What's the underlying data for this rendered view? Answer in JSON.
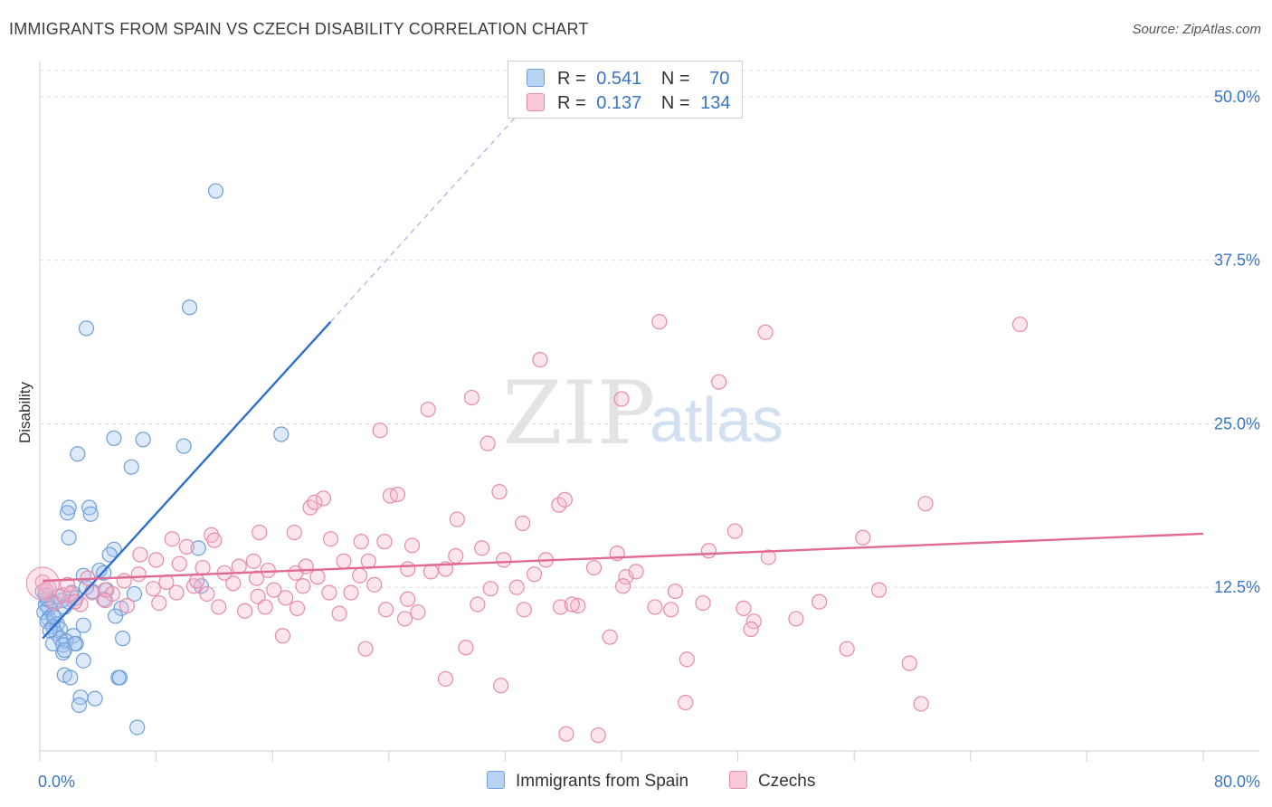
{
  "header": {
    "title": "IMMIGRANTS FROM SPAIN VS CZECH DISABILITY CORRELATION CHART",
    "source": "Source: ZipAtlas.com"
  },
  "watermark": {
    "zip": "ZIP",
    "atlas": "atlas"
  },
  "stats_legend": {
    "rows": [
      {
        "r_label": "R =",
        "r_value": "0.541",
        "n_label": "N =",
        "n_value": "70",
        "color": "#a9c8f0",
        "border": "#6f9fd8"
      },
      {
        "r_label": "R =",
        "r_value": "0.137",
        "n_label": "N =",
        "n_value": "134",
        "color": "#f7bdd0",
        "border": "#e98aa8"
      }
    ]
  },
  "bottom_legend": {
    "items": [
      {
        "label": "Immigrants from Spain",
        "color": "#b9d3f3",
        "border": "#6f9fd8"
      },
      {
        "label": "Czechs",
        "color": "#f9c9d8",
        "border": "#e98aa8"
      }
    ]
  },
  "chart_data": {
    "type": "scatter",
    "title": "IMMIGRANTS FROM SPAIN VS CZECH DISABILITY CORRELATION CHART",
    "xlabel": "",
    "ylabel": "Disability",
    "xlim": [
      0,
      80
    ],
    "ylim": [
      0,
      52
    ],
    "x_ticks": [
      "0.0%",
      "80.0%"
    ],
    "y_ticks": [
      {
        "value": 12.5,
        "label": "12.5%"
      },
      {
        "value": 25.0,
        "label": "25.0%"
      },
      {
        "value": 37.5,
        "label": "37.5%"
      },
      {
        "value": 50.0,
        "label": "50.0%"
      }
    ],
    "grid": true,
    "legend_position": "top-center",
    "series": [
      {
        "name": "Immigrants from Spain",
        "color": "#6f9fd8",
        "fill": "rgba(160,196,240,0.35)",
        "trend": {
          "x0": 0.2,
          "y0": 8.6,
          "x1": 20.0,
          "y1": 32.8,
          "dash_to_x": 33.0,
          "dash_to_y": 48.8,
          "color": "#2d6fd0"
        },
        "points": [
          [
            12.1,
            42.8
          ],
          [
            10.3,
            33.9
          ],
          [
            3.2,
            32.3
          ],
          [
            16.6,
            24.2
          ],
          [
            5.1,
            23.9
          ],
          [
            7.1,
            23.8
          ],
          [
            9.9,
            23.3
          ],
          [
            2.6,
            22.7
          ],
          [
            6.3,
            21.7
          ],
          [
            2.0,
            18.6
          ],
          [
            3.4,
            18.6
          ],
          [
            1.9,
            18.2
          ],
          [
            3.5,
            18.1
          ],
          [
            2.0,
            16.3
          ],
          [
            10.9,
            15.5
          ],
          [
            5.1,
            15.4
          ],
          [
            4.8,
            15.0
          ],
          [
            4.1,
            13.8
          ],
          [
            3.0,
            13.4
          ],
          [
            4.4,
            13.6
          ],
          [
            2.2,
            12.1
          ],
          [
            3.6,
            12.2
          ],
          [
            6.5,
            12.0
          ],
          [
            11.1,
            12.6
          ],
          [
            1.5,
            11.5
          ],
          [
            2.0,
            11.4
          ],
          [
            0.8,
            11.4
          ],
          [
            0.4,
            11.2
          ],
          [
            4.4,
            11.6
          ],
          [
            1.7,
            11.0
          ],
          [
            0.6,
            10.9
          ],
          [
            5.6,
            10.9
          ],
          [
            0.3,
            10.6
          ],
          [
            0.9,
            10.4
          ],
          [
            0.6,
            10.1
          ],
          [
            5.2,
            10.3
          ],
          [
            0.5,
            9.9
          ],
          [
            1.2,
            9.7
          ],
          [
            3.0,
            9.6
          ],
          [
            0.9,
            9.5
          ],
          [
            1.4,
            9.3
          ],
          [
            1.1,
            9.0
          ],
          [
            2.3,
            8.8
          ],
          [
            1.4,
            8.6
          ],
          [
            0.9,
            8.2
          ],
          [
            1.8,
            8.4
          ],
          [
            1.6,
            8.1
          ],
          [
            2.5,
            8.2
          ],
          [
            5.7,
            8.6
          ],
          [
            2.4,
            8.2
          ],
          [
            1.6,
            7.5
          ],
          [
            1.7,
            7.7
          ],
          [
            3.0,
            6.9
          ],
          [
            1.7,
            5.8
          ],
          [
            2.1,
            5.6
          ],
          [
            5.4,
            5.6
          ],
          [
            5.5,
            5.6
          ],
          [
            2.8,
            4.1
          ],
          [
            3.8,
            4.0
          ],
          [
            2.7,
            3.5
          ],
          [
            6.7,
            1.8
          ],
          [
            0.2,
            12.2
          ],
          [
            1.3,
            11.8
          ],
          [
            2.5,
            11.7
          ],
          [
            0.5,
            11.6
          ],
          [
            1.0,
            10.2
          ],
          [
            0.7,
            9.2
          ],
          [
            4.6,
            12.3
          ],
          [
            3.2,
            12.5
          ],
          [
            0.4,
            11.9
          ]
        ]
      },
      {
        "name": "Czechs",
        "color": "#e98aa8",
        "fill": "rgba(247,180,202,0.35)",
        "trend": {
          "x0": 0.2,
          "y0": 13.0,
          "x1": 80.0,
          "y1": 16.6,
          "color": "#e06a94"
        },
        "points": [
          [
            42.6,
            32.8
          ],
          [
            49.9,
            32.0
          ],
          [
            67.4,
            32.6
          ],
          [
            34.4,
            29.9
          ],
          [
            46.7,
            28.2
          ],
          [
            26.7,
            26.1
          ],
          [
            29.7,
            27.0
          ],
          [
            40.0,
            26.9
          ],
          [
            23.4,
            24.5
          ],
          [
            30.8,
            23.5
          ],
          [
            18.6,
            18.6
          ],
          [
            18.9,
            19.0
          ],
          [
            19.5,
            19.3
          ],
          [
            24.1,
            19.5
          ],
          [
            24.6,
            19.6
          ],
          [
            31.6,
            19.8
          ],
          [
            35.7,
            18.8
          ],
          [
            36.1,
            19.2
          ],
          [
            60.9,
            18.9
          ],
          [
            28.7,
            17.7
          ],
          [
            33.2,
            17.4
          ],
          [
            17.5,
            16.7
          ],
          [
            15.1,
            16.7
          ],
          [
            11.8,
            16.5
          ],
          [
            9.1,
            16.2
          ],
          [
            20.0,
            16.2
          ],
          [
            22.1,
            16.0
          ],
          [
            23.7,
            16.0
          ],
          [
            25.6,
            15.7
          ],
          [
            47.8,
            16.8
          ],
          [
            56.6,
            16.3
          ],
          [
            12.0,
            16.1
          ],
          [
            6.9,
            15.0
          ],
          [
            8.0,
            14.6
          ],
          [
            10.1,
            15.6
          ],
          [
            14.7,
            14.5
          ],
          [
            18.3,
            14.1
          ],
          [
            22.6,
            14.5
          ],
          [
            28.6,
            14.9
          ],
          [
            30.4,
            15.5
          ],
          [
            34.8,
            14.6
          ],
          [
            46.0,
            15.3
          ],
          [
            9.6,
            14.3
          ],
          [
            11.2,
            14.0
          ],
          [
            12.7,
            13.6
          ],
          [
            15.7,
            13.8
          ],
          [
            17.6,
            13.6
          ],
          [
            19.1,
            13.3
          ],
          [
            22.0,
            13.4
          ],
          [
            25.3,
            13.9
          ],
          [
            26.9,
            13.7
          ],
          [
            34.0,
            13.5
          ],
          [
            40.3,
            13.3
          ],
          [
            41.0,
            13.7
          ],
          [
            3.3,
            13.2
          ],
          [
            5.8,
            13.0
          ],
          [
            8.7,
            12.9
          ],
          [
            10.6,
            12.6
          ],
          [
            13.3,
            12.8
          ],
          [
            16.1,
            12.3
          ],
          [
            18.1,
            12.6
          ],
          [
            21.4,
            12.1
          ],
          [
            23.0,
            12.7
          ],
          [
            31.0,
            12.4
          ],
          [
            40.1,
            12.6
          ],
          [
            57.7,
            12.3
          ],
          [
            2.1,
            12.0
          ],
          [
            3.6,
            12.1
          ],
          [
            4.5,
            12.3
          ],
          [
            5.0,
            12.0
          ],
          [
            7.8,
            12.4
          ],
          [
            9.4,
            12.1
          ],
          [
            11.5,
            12.0
          ],
          [
            15.0,
            11.8
          ],
          [
            16.9,
            11.7
          ],
          [
            19.9,
            12.1
          ],
          [
            25.3,
            11.6
          ],
          [
            1.0,
            11.3
          ],
          [
            2.8,
            11.2
          ],
          [
            4.5,
            11.5
          ],
          [
            12.3,
            11.0
          ],
          [
            14.1,
            10.7
          ],
          [
            15.5,
            11.0
          ],
          [
            23.8,
            10.8
          ],
          [
            26.0,
            10.6
          ],
          [
            30.1,
            11.2
          ],
          [
            33.3,
            10.8
          ],
          [
            37.0,
            11.1
          ],
          [
            42.3,
            11.0
          ],
          [
            43.4,
            10.8
          ],
          [
            45.6,
            11.3
          ],
          [
            48.4,
            10.9
          ],
          [
            20.6,
            10.5
          ],
          [
            25.1,
            10.1
          ],
          [
            52.0,
            10.1
          ],
          [
            35.8,
            11.0
          ],
          [
            36.6,
            11.2
          ],
          [
            49.1,
            9.9
          ],
          [
            48.9,
            9.3
          ],
          [
            16.7,
            8.8
          ],
          [
            22.4,
            7.8
          ],
          [
            29.3,
            7.9
          ],
          [
            39.2,
            8.7
          ],
          [
            55.5,
            7.8
          ],
          [
            44.5,
            7.0
          ],
          [
            59.8,
            6.7
          ],
          [
            27.9,
            5.5
          ],
          [
            31.7,
            5.0
          ],
          [
            44.4,
            3.7
          ],
          [
            60.6,
            3.6
          ],
          [
            36.2,
            1.3
          ],
          [
            38.4,
            1.2
          ],
          [
            0.2,
            12.9
          ],
          [
            0.6,
            12.5
          ],
          [
            1.6,
            11.9
          ],
          [
            2.4,
            11.4
          ],
          [
            6.8,
            13.5
          ],
          [
            13.7,
            14.1
          ],
          [
            20.9,
            14.5
          ],
          [
            27.9,
            13.9
          ],
          [
            32.8,
            12.5
          ],
          [
            38.1,
            14.0
          ],
          [
            43.7,
            12.2
          ],
          [
            50.1,
            14.8
          ],
          [
            53.6,
            11.4
          ],
          [
            10.8,
            13.0
          ],
          [
            14.9,
            13.2
          ],
          [
            6.0,
            11.1
          ],
          [
            8.2,
            11.3
          ],
          [
            17.7,
            10.9
          ],
          [
            31.9,
            14.6
          ],
          [
            39.7,
            15.1
          ],
          [
            0.4,
            12.3
          ],
          [
            1.9,
            12.7
          ]
        ]
      }
    ]
  }
}
